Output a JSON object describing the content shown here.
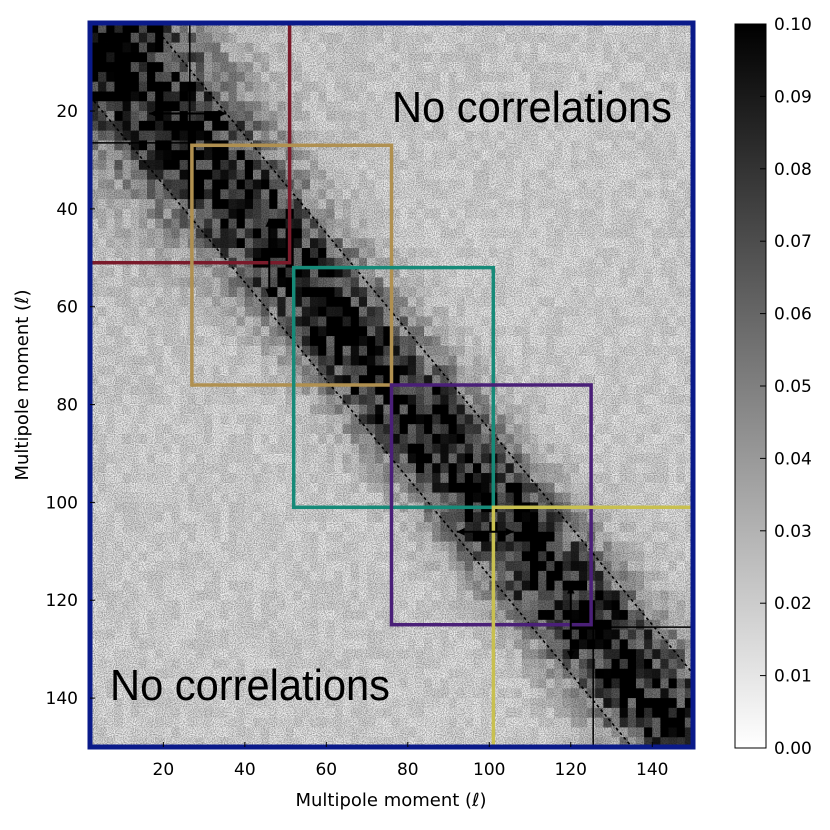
{
  "chart_data": {
    "type": "heatmap",
    "title": "",
    "xlabel": "Multipole moment (ℓ)",
    "ylabel": "Multipole moment (ℓ)",
    "xlim": [
      2,
      150
    ],
    "ylim": [
      150,
      2
    ],
    "x_ticks": [
      20,
      40,
      60,
      80,
      100,
      120,
      140
    ],
    "y_ticks": [
      20,
      40,
      60,
      80,
      100,
      120,
      140
    ],
    "colorbar": {
      "min": 0.0,
      "max": 0.1,
      "ticks": [
        "0.00",
        "0.01",
        "0.02",
        "0.03",
        "0.04",
        "0.05",
        "0.06",
        "0.07",
        "0.08",
        "0.09",
        "0.10"
      ],
      "colormap": "white-to-black"
    },
    "description_of_values": {
      "diagonal_peak": 0.1,
      "band_halfwidth_multipoles": 15,
      "background_level": 0.01
    },
    "annotations": [
      {
        "text": "No correlations",
        "region": "upper-right"
      },
      {
        "text": "No correlations",
        "region": "lower-left"
      }
    ],
    "blocks": [
      {
        "range": [
          2,
          51
        ],
        "color": "#7a1a2a"
      },
      {
        "range": [
          27,
          76
        ],
        "color": "#b09050"
      },
      {
        "range": [
          52,
          101
        ],
        "color": "#168a78"
      },
      {
        "range": [
          76,
          125
        ],
        "color": "#4a1f78"
      },
      {
        "range": [
          101,
          150
        ],
        "color": "#c8c050"
      }
    ],
    "frame_color": "#0a1a8a"
  }
}
